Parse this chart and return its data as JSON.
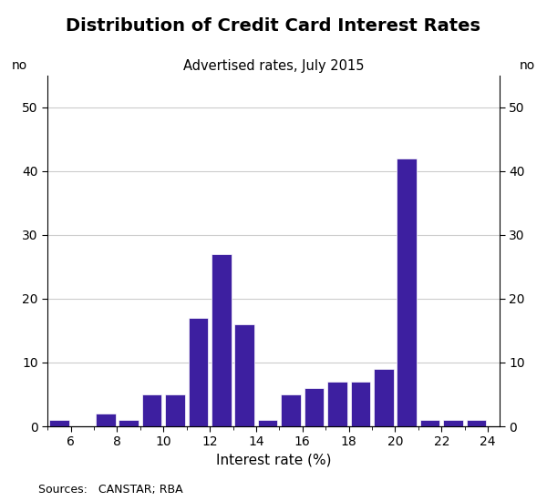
{
  "title": "Distribution of Credit Card Interest Rates",
  "subtitle": "Advertised rates, July 2015",
  "xlabel": "Interest rate (%)",
  "ylabel_left": "no",
  "ylabel_right": "no",
  "source": "Sources:   CANSTAR; RBA",
  "bar_color": "#3d1fa0",
  "xlim": [
    5.0,
    24.5
  ],
  "ylim": [
    0,
    55
  ],
  "yticks": [
    0,
    10,
    20,
    30,
    40,
    50
  ],
  "xticks": [
    6,
    8,
    10,
    12,
    14,
    16,
    18,
    20,
    22,
    24
  ],
  "bar_width": 0.85,
  "bins": [
    5.5,
    6.5,
    7.5,
    8.5,
    9.5,
    10.5,
    11.5,
    12.5,
    13.5,
    14.5,
    15.5,
    16.5,
    17.5,
    18.5,
    19.5,
    20.5,
    21.5,
    22.5,
    23.5
  ],
  "values": [
    1,
    0,
    2,
    1,
    5,
    5,
    17,
    27,
    16,
    1,
    5,
    6,
    7,
    7,
    9,
    42,
    1,
    1,
    1
  ]
}
